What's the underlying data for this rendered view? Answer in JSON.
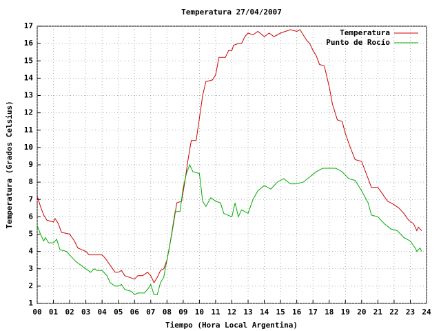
{
  "chart_data": {
    "type": "line",
    "title": "Temperatura 27/04/2007",
    "xlabel": "Tiempo (Hora Local Argentina)",
    "ylabel": "Temperatura (Grados Celsius)",
    "grid": true,
    "legend": "top-right",
    "xlim": [
      0,
      24
    ],
    "ylim": [
      1,
      17
    ],
    "xticks": [
      {
        "value": 0,
        "label": "00"
      },
      {
        "value": 1,
        "label": "01"
      },
      {
        "value": 2,
        "label": "02"
      },
      {
        "value": 3,
        "label": "03"
      },
      {
        "value": 4,
        "label": "04"
      },
      {
        "value": 5,
        "label": "05"
      },
      {
        "value": 6,
        "label": "06"
      },
      {
        "value": 7,
        "label": "07"
      },
      {
        "value": 8,
        "label": "08"
      },
      {
        "value": 9,
        "label": "09"
      },
      10,
      11,
      12,
      13,
      14,
      15,
      16,
      17,
      18,
      19,
      20,
      21,
      22,
      23,
      24
    ],
    "yticks": [
      1,
      2,
      3,
      4,
      5,
      6,
      7,
      8,
      9,
      10,
      11,
      12,
      13,
      14,
      15,
      16,
      17
    ],
    "series": [
      {
        "name": "Temperatura",
        "color": "#cc0000",
        "x": [
          0.0,
          0.2,
          0.4,
          0.6,
          1.0,
          1.1,
          1.3,
          1.5,
          2.0,
          2.3,
          2.5,
          3.0,
          3.2,
          3.5,
          4.0,
          4.2,
          4.5,
          4.8,
          5.0,
          5.2,
          5.4,
          5.7,
          6.0,
          6.2,
          6.5,
          6.8,
          7.0,
          7.2,
          7.4,
          7.6,
          7.8,
          8.0,
          8.2,
          8.4,
          8.6,
          8.9,
          9.1,
          9.3,
          9.5,
          9.8,
          10.0,
          10.2,
          10.4,
          10.8,
          11.0,
          11.2,
          11.6,
          11.8,
          12.0,
          12.1,
          12.4,
          12.6,
          12.8,
          13.0,
          13.3,
          13.6,
          14.0,
          14.3,
          14.6,
          15.0,
          15.3,
          15.6,
          16.0,
          16.2,
          16.4,
          16.6,
          16.8,
          17.0,
          17.2,
          17.4,
          17.7,
          18.0,
          18.2,
          18.5,
          18.8,
          19.0,
          19.3,
          19.6,
          20.0,
          20.2,
          20.4,
          20.6,
          21.0,
          21.3,
          21.6,
          22.0,
          22.3,
          22.6,
          22.9,
          23.2,
          23.4,
          23.5,
          23.7
        ],
        "values": [
          7.2,
          6.6,
          6.1,
          5.8,
          5.7,
          5.9,
          5.6,
          5.1,
          5.0,
          4.6,
          4.2,
          4.0,
          3.8,
          3.8,
          3.8,
          3.6,
          3.2,
          2.8,
          2.8,
          2.9,
          2.6,
          2.5,
          2.4,
          2.6,
          2.6,
          2.8,
          2.6,
          2.2,
          2.5,
          2.9,
          3.0,
          3.5,
          4.5,
          5.6,
          6.8,
          6.9,
          8.0,
          9.3,
          10.4,
          10.4,
          11.7,
          13.0,
          13.8,
          13.9,
          14.2,
          15.2,
          15.2,
          15.6,
          15.6,
          15.9,
          16.0,
          16.0,
          16.4,
          16.6,
          16.5,
          16.7,
          16.4,
          16.6,
          16.4,
          16.6,
          16.7,
          16.8,
          16.7,
          16.8,
          16.5,
          16.2,
          16.0,
          15.6,
          15.3,
          14.8,
          14.7,
          13.5,
          12.5,
          11.6,
          11.5,
          10.8,
          10.0,
          9.3,
          9.2,
          8.7,
          8.2,
          7.7,
          7.7,
          7.3,
          6.9,
          6.7,
          6.5,
          6.2,
          5.8,
          5.6,
          5.2,
          5.4,
          5.2
        ]
      },
      {
        "name": "Punto de Rocío",
        "color": "#00aa00",
        "x": [
          0.0,
          0.2,
          0.4,
          0.5,
          0.7,
          1.0,
          1.2,
          1.4,
          1.8,
          2.1,
          2.4,
          2.7,
          3.0,
          3.3,
          3.5,
          3.7,
          4.0,
          4.3,
          4.5,
          4.8,
          5.0,
          5.2,
          5.4,
          5.8,
          6.0,
          6.2,
          6.6,
          6.8,
          7.0,
          7.2,
          7.4,
          7.6,
          7.8,
          8.0,
          8.2,
          8.5,
          8.8,
          9.0,
          9.2,
          9.4,
          9.6,
          10.0,
          10.2,
          10.4,
          10.7,
          11.0,
          11.3,
          11.5,
          12.0,
          12.2,
          12.4,
          12.6,
          13.0,
          13.3,
          13.6,
          14.0,
          14.4,
          14.8,
          15.2,
          15.6,
          16.0,
          16.4,
          16.8,
          17.2,
          17.6,
          18.0,
          18.4,
          18.8,
          19.2,
          19.6,
          20.0,
          20.4,
          20.6,
          21.0,
          21.4,
          21.8,
          22.2,
          22.6,
          23.0,
          23.3,
          23.4,
          23.6,
          23.7
        ],
        "values": [
          5.5,
          5.0,
          4.6,
          4.8,
          4.5,
          4.5,
          4.7,
          4.1,
          4.0,
          3.7,
          3.4,
          3.2,
          3.0,
          2.8,
          3.0,
          2.9,
          2.9,
          2.6,
          2.2,
          2.0,
          2.0,
          2.1,
          1.8,
          1.7,
          1.5,
          1.6,
          1.6,
          1.8,
          2.1,
          1.5,
          1.5,
          2.2,
          2.5,
          3.5,
          4.5,
          6.3,
          6.3,
          7.7,
          8.5,
          9.0,
          8.6,
          8.5,
          6.9,
          6.6,
          7.1,
          6.9,
          6.8,
          6.2,
          6.0,
          6.8,
          6.0,
          6.4,
          6.2,
          7.0,
          7.5,
          7.8,
          7.6,
          8.0,
          8.2,
          7.9,
          7.9,
          8.0,
          8.3,
          8.6,
          8.8,
          8.8,
          8.8,
          8.6,
          8.2,
          8.1,
          7.5,
          6.8,
          6.1,
          6.0,
          5.6,
          5.3,
          5.2,
          4.8,
          4.6,
          4.2,
          4.0,
          4.2,
          4.0
        ]
      }
    ]
  }
}
